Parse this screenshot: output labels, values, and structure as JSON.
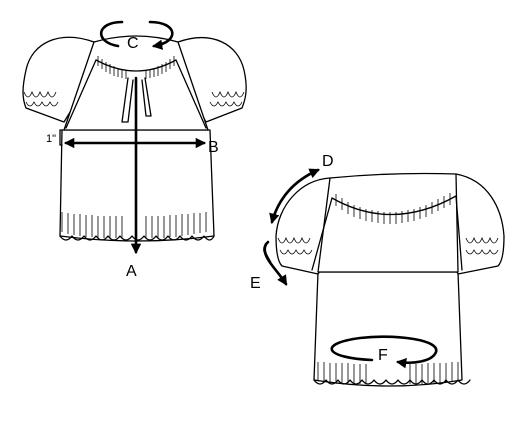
{
  "labels": {
    "a": "A",
    "b": "B",
    "c": "C",
    "d": "D",
    "e": "E",
    "f": "F",
    "offset": "1\""
  }
}
